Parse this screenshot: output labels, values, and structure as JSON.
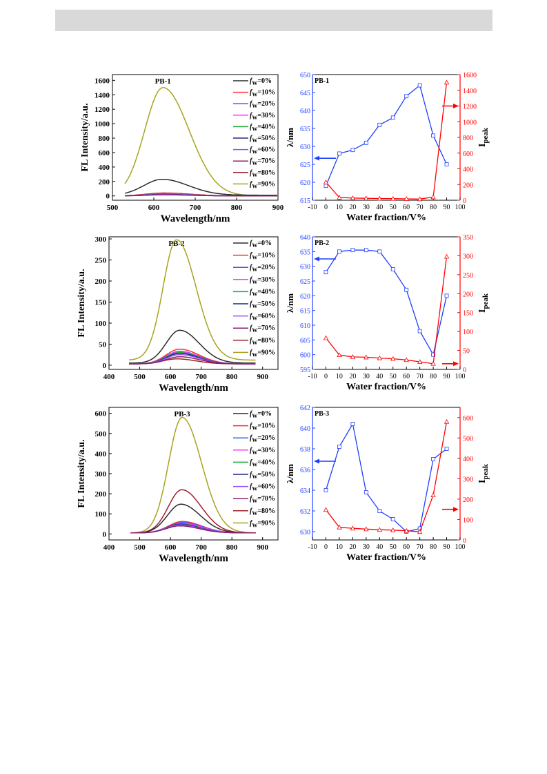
{
  "page": {
    "header_color": "#d9d9d9"
  },
  "colors": {
    "series": [
      "#2b2b2b",
      "#ff2a2a",
      "#3a5bff",
      "#ff33ff",
      "#22aa33",
      "#1f2a7a",
      "#9a4dff",
      "#8a1f6a",
      "#a01f2a",
      "#a8a21f"
    ],
    "wavelength_axis": "#1f3fff",
    "intensity_axis": "#ff0000"
  },
  "legend_labels": [
    "fW=0%",
    "fW=10%",
    "fW=20%",
    "fW=30%",
    "fW=40%",
    "fW=50%",
    "fW=60%",
    "fW=70%",
    "fW=80%",
    "fW=90%"
  ],
  "chart_data": [
    {
      "type": "line",
      "title": "PB-1",
      "xlabel": "Wavelength/nm",
      "ylabel": "FL Intensity/a.u.",
      "xlim": [
        500,
        900
      ],
      "ylim": [
        -60,
        1680
      ],
      "xticks": [
        500,
        600,
        700,
        800,
        900
      ],
      "yticks": [
        0,
        200,
        400,
        600,
        800,
        1000,
        1200,
        1400,
        1600
      ],
      "x_range": [
        530,
        900
      ],
      "series": [
        {
          "name": "fW=0%",
          "peak_x": 620,
          "peak_y": 230,
          "base_y": 10
        },
        {
          "name": "fW=10%",
          "peak_x": 625,
          "peak_y": 35,
          "base_y": 0
        },
        {
          "name": "fW=20%",
          "peak_x": 625,
          "peak_y": 28,
          "base_y": 0
        },
        {
          "name": "fW=30%",
          "peak_x": 625,
          "peak_y": 25,
          "base_y": 0
        },
        {
          "name": "fW=40%",
          "peak_x": 625,
          "peak_y": 22,
          "base_y": 0
        },
        {
          "name": "fW=50%",
          "peak_x": 625,
          "peak_y": 20,
          "base_y": 0
        },
        {
          "name": "fW=60%",
          "peak_x": 625,
          "peak_y": 18,
          "base_y": 0
        },
        {
          "name": "fW=70%",
          "peak_x": 625,
          "peak_y": 15,
          "base_y": 0
        },
        {
          "name": "fW=80%",
          "peak_x": 625,
          "peak_y": 40,
          "base_y": 0
        },
        {
          "name": "fW=90%",
          "peak_x": 622,
          "peak_y": 1500,
          "base_y": 0
        }
      ]
    },
    {
      "type": "line",
      "title": "PB-1",
      "xlabel": "Water fraction/V%",
      "ylabel_left": "λ/nm",
      "ylabel_right": "Ipeak",
      "xlim": [
        -10,
        100
      ],
      "xticks": [
        -10,
        0,
        10,
        20,
        30,
        40,
        50,
        60,
        70,
        80,
        90,
        100
      ],
      "ylim_left": [
        615,
        650
      ],
      "yticks_left": [
        615,
        620,
        625,
        630,
        635,
        640,
        645,
        650
      ],
      "ylim_right": [
        0,
        1600
      ],
      "yticks_right": [
        0,
        200,
        400,
        600,
        800,
        1000,
        1200,
        1400,
        1600
      ],
      "x": [
        0,
        10,
        20,
        30,
        40,
        50,
        60,
        70,
        80,
        90
      ],
      "wavelength": [
        619,
        628,
        629,
        631,
        636,
        638,
        644,
        647,
        633,
        625
      ],
      "intensity": [
        230,
        35,
        28,
        25,
        22,
        20,
        18,
        15,
        40,
        1500
      ],
      "arrows": [
        {
          "side": "left",
          "y_left": 626.7
        },
        {
          "side": "right",
          "y_right": 1200
        }
      ]
    },
    {
      "type": "line",
      "title": "PB-2",
      "xlabel": "Wavelength/nm",
      "ylabel": "FL Intensity/a.u.",
      "xlim": [
        400,
        950
      ],
      "ylim": [
        -10,
        305
      ],
      "xticks": [
        400,
        500,
        600,
        700,
        800,
        900
      ],
      "yticks": [
        0,
        50,
        100,
        150,
        200,
        250,
        300
      ],
      "x_range": [
        465,
        880
      ],
      "series": [
        {
          "name": "fW=0%",
          "peak_x": 630,
          "peak_y": 83,
          "base_y": 5
        },
        {
          "name": "fW=10%",
          "peak_x": 630,
          "peak_y": 38,
          "base_y": 3
        },
        {
          "name": "fW=20%",
          "peak_x": 630,
          "peak_y": 33,
          "base_y": 3
        },
        {
          "name": "fW=30%",
          "peak_x": 630,
          "peak_y": 32,
          "base_y": 3
        },
        {
          "name": "fW=40%",
          "peak_x": 630,
          "peak_y": 30,
          "base_y": 3
        },
        {
          "name": "fW=50%",
          "peak_x": 630,
          "peak_y": 28,
          "base_y": 3
        },
        {
          "name": "fW=60%",
          "peak_x": 630,
          "peak_y": 25,
          "base_y": 3
        },
        {
          "name": "fW=70%",
          "peak_x": 630,
          "peak_y": 20,
          "base_y": 3
        },
        {
          "name": "fW=80%",
          "peak_x": 620,
          "peak_y": 15,
          "base_y": 3
        },
        {
          "name": "fW=90%",
          "peak_x": 620,
          "peak_y": 298,
          "base_y": 12
        }
      ]
    },
    {
      "type": "line",
      "title": "PB-2",
      "xlabel": "Water fraction/V%",
      "ylabel_left": "λ/nm",
      "ylabel_right": "Ipeak",
      "xlim": [
        -10,
        100
      ],
      "xticks": [
        -10,
        0,
        10,
        20,
        30,
        40,
        50,
        60,
        70,
        80,
        90,
        100
      ],
      "ylim_left": [
        595,
        640
      ],
      "yticks_left": [
        595,
        600,
        605,
        610,
        615,
        620,
        625,
        630,
        635,
        640
      ],
      "ylim_right": [
        0,
        350
      ],
      "yticks_right": [
        0,
        50,
        100,
        150,
        200,
        250,
        300,
        350
      ],
      "x": [
        0,
        10,
        20,
        30,
        40,
        50,
        60,
        70,
        80,
        90
      ],
      "wavelength": [
        628,
        635,
        635.5,
        635.5,
        635,
        629,
        622,
        608,
        600,
        620
      ],
      "intensity": [
        83,
        38,
        33,
        32,
        30,
        28,
        25,
        20,
        15,
        298
      ],
      "arrows": [
        {
          "side": "left",
          "y_left": 632.5
        },
        {
          "side": "right",
          "y_right": 15
        }
      ]
    },
    {
      "type": "line",
      "title": "PB-3",
      "xlabel": "Wavelength/nm",
      "ylabel": "FL Intensity/a.u.",
      "xlim": [
        400,
        950
      ],
      "ylim": [
        -30,
        630
      ],
      "xticks": [
        400,
        500,
        600,
        700,
        800,
        900
      ],
      "yticks": [
        0,
        100,
        200,
        300,
        400,
        500,
        600
      ],
      "x_range": [
        470,
        880
      ],
      "series": [
        {
          "name": "fW=0%",
          "peak_x": 634,
          "peak_y": 148,
          "base_y": 5
        },
        {
          "name": "fW=10%",
          "peak_x": 638,
          "peak_y": 62,
          "base_y": 5
        },
        {
          "name": "fW=20%",
          "peak_x": 640,
          "peak_y": 57,
          "base_y": 5
        },
        {
          "name": "fW=30%",
          "peak_x": 638,
          "peak_y": 53,
          "base_y": 5
        },
        {
          "name": "fW=40%",
          "peak_x": 632,
          "peak_y": 50,
          "base_y": 5
        },
        {
          "name": "fW=50%",
          "peak_x": 631,
          "peak_y": 48,
          "base_y": 5
        },
        {
          "name": "fW=60%",
          "peak_x": 630,
          "peak_y": 45,
          "base_y": 5
        },
        {
          "name": "fW=70%",
          "peak_x": 630,
          "peak_y": 40,
          "base_y": 5
        },
        {
          "name": "fW=80%",
          "peak_x": 637,
          "peak_y": 220,
          "base_y": 5
        },
        {
          "name": "fW=90%",
          "peak_x": 638,
          "peak_y": 580,
          "base_y": 5
        }
      ]
    },
    {
      "type": "line",
      "title": "PB-3",
      "xlabel": "Water fraction/V%",
      "ylabel_left": "λ/nm",
      "ylabel_right": "Ipeak",
      "xlim": [
        -10,
        100
      ],
      "xticks": [
        -10,
        0,
        10,
        20,
        30,
        40,
        50,
        60,
        70,
        80,
        90,
        100
      ],
      "ylim_left": [
        629.2,
        642
      ],
      "yticks_left": [
        630,
        632,
        634,
        636,
        638,
        640,
        642
      ],
      "ylim_right": [
        0,
        650
      ],
      "yticks_right": [
        0,
        100,
        200,
        300,
        400,
        500,
        600
      ],
      "x": [
        0,
        10,
        20,
        30,
        40,
        50,
        60,
        70,
        80,
        90
      ],
      "wavelength": [
        634,
        638.2,
        640.4,
        633.8,
        632,
        631.2,
        630,
        630.3,
        637,
        638
      ],
      "intensity": [
        148,
        62,
        57,
        53,
        50,
        48,
        45,
        40,
        220,
        580
      ],
      "arrows": [
        {
          "side": "left",
          "y_left": 636.8
        },
        {
          "side": "right",
          "y_right": 150
        }
      ]
    }
  ]
}
